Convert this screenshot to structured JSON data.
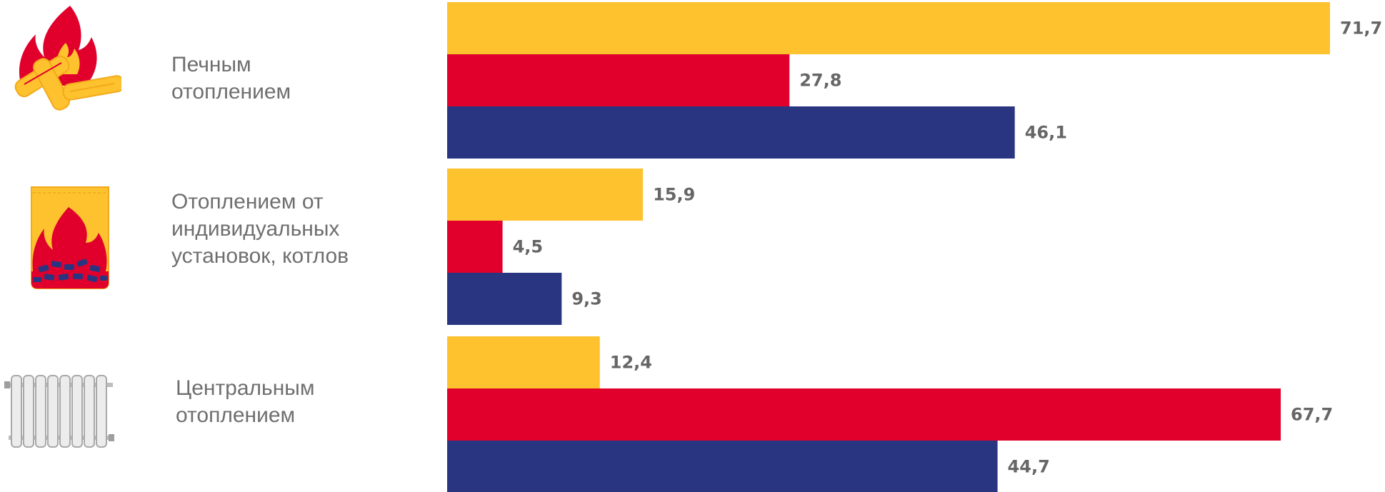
{
  "chart_data": {
    "type": "bar",
    "orientation": "horizontal",
    "categories": [
      "Печным\nотоплением",
      "Отоплением от\nиндивидуальных\nустановок, котлов",
      "Центральным\nотоплением"
    ],
    "category_icons": [
      "firewood-icon",
      "coal-bag-icon",
      "radiator-icon"
    ],
    "series": [
      {
        "color": "#FDC22E",
        "values": [
          71.7,
          15.9,
          12.4
        ],
        "labels": [
          "71,7",
          "15,9",
          "12,4"
        ]
      },
      {
        "color": "#E1002C",
        "values": [
          27.8,
          4.5,
          67.7
        ],
        "labels": [
          "27,8",
          "4,5",
          "67,7"
        ]
      },
      {
        "color": "#2A3581",
        "values": [
          46.1,
          9.3,
          44.7
        ],
        "labels": [
          "46,1",
          "9,3",
          "44,7"
        ]
      }
    ],
    "title": "",
    "xlabel": "",
    "ylabel": "",
    "xlim": [
      0,
      71.7
    ],
    "grid": false,
    "legend": "none"
  }
}
